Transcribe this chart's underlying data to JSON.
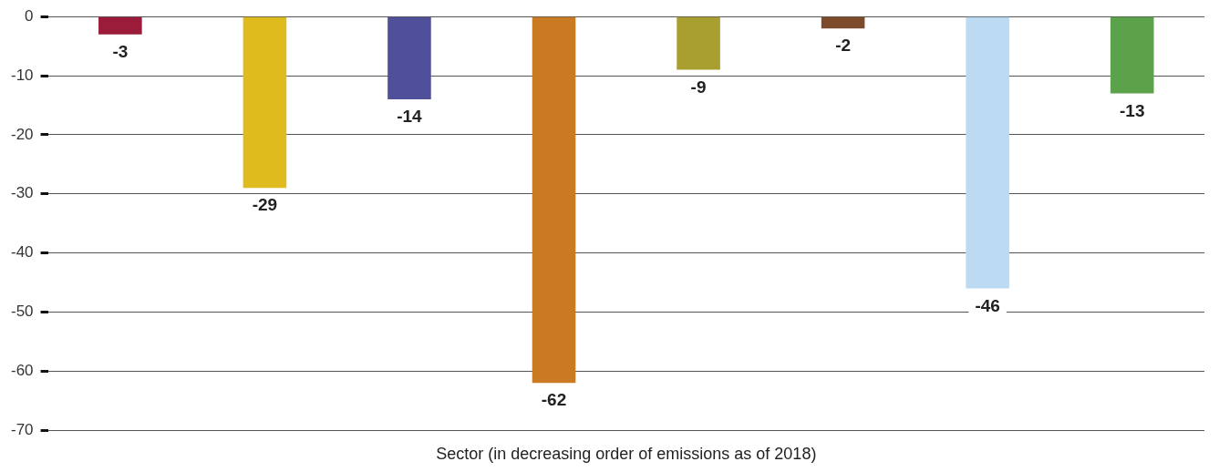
{
  "chart_data": {
    "type": "bar",
    "xlabel": "Sector (in decreasing order of emissions as of 2018)",
    "categories": [
      null,
      null,
      null,
      null,
      null,
      null,
      null,
      null
    ],
    "values": [
      -3,
      -29,
      -14,
      -62,
      -9,
      -2,
      -46,
      -13
    ],
    "colors": [
      "#9b1b3a",
      "#dfbb1e",
      "#4f4f9a",
      "#c97a22",
      "#a89f30",
      "#7e4a2c",
      "#bcdaf2",
      "#5ba24a"
    ],
    "ylim": [
      -70,
      0
    ],
    "yticks": [
      -70,
      -60,
      -50,
      -40,
      -30,
      -20,
      -10,
      0
    ],
    "grid": "y",
    "data_labels": true,
    "legend": false
  }
}
